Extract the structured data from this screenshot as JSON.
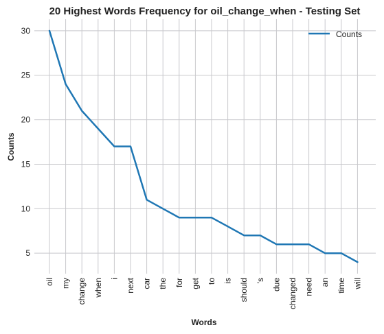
{
  "chart_data": {
    "type": "line",
    "title": "20 Highest Words Frequency for oil_change_when - Testing Set",
    "xlabel": "Words",
    "ylabel": "Counts",
    "categories": [
      "oil",
      "my",
      "change",
      "when",
      "i",
      "next",
      "car",
      "the",
      "for",
      "get",
      "to",
      "is",
      "should",
      "'s",
      "due",
      "changed",
      "need",
      "an",
      "time",
      "will"
    ],
    "series": [
      {
        "name": "Counts",
        "values": [
          30,
          24,
          21,
          19,
          17,
          17,
          11,
          10,
          9,
          9,
          9,
          8,
          7,
          7,
          6,
          6,
          6,
          5,
          5,
          4
        ]
      }
    ],
    "yticks": [
      5,
      10,
      15,
      20,
      25,
      30
    ],
    "ylim": [
      2.7,
      31.3
    ],
    "grid": true,
    "legend": "top-right",
    "colors": {
      "line": "#1f77b4",
      "grid": "#c8c8cc",
      "plot_bg": "#eaeaf2"
    }
  }
}
